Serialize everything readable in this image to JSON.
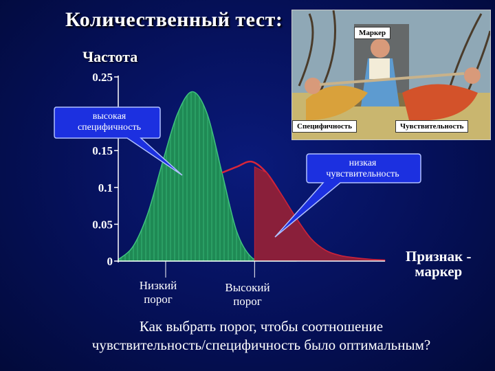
{
  "title": "Количественный тест:",
  "ylabel": "Частота",
  "xlabel_line1": "Признак -",
  "xlabel_line2": "маркер",
  "low_threshold_line1": "Низкий",
  "low_threshold_line2": "порог",
  "high_threshold_line1": "Высокий",
  "high_threshold_line2": "порог",
  "callout_high_spec_line1": "высокая",
  "callout_high_spec_line2": "специфичность",
  "callout_low_sens_line1": "низкая",
  "callout_low_sens_line2": "чувствительность",
  "question_line1": "Как выбрать порог, чтобы соотношение",
  "question_line2": "чувствительность/специфичность было оптимальным?",
  "photo": {
    "tag_marker": "Маркер",
    "tag_specificity": "Специфичность",
    "tag_sensitivity": "Чувствительность"
  },
  "colors": {
    "healthy": "#1f8a55",
    "disease": "#8a1f3a",
    "callout": "#1c30e0"
  },
  "chart_data": {
    "type": "area",
    "ylabel": "Частота",
    "xlabel": "Признак - маркер",
    "yticks": [
      "0",
      "0.05",
      "0.1",
      "0.15",
      "0.25"
    ],
    "ylim": [
      0,
      0.25
    ],
    "series": [
      {
        "x": [
          0.0,
          0.05,
          0.1,
          0.15,
          0.2,
          0.25,
          0.3,
          0.35,
          0.4,
          0.45,
          0.5,
          0.55,
          0.6
        ],
        "values": [
          0.002,
          0.02,
          0.065,
          0.135,
          0.2,
          0.23,
          0.2,
          0.12,
          0.04,
          0.005,
          0.002,
          0.002,
          0.001
        ]
      },
      {
        "x": [
          0.35,
          0.4,
          0.45,
          0.5,
          0.55,
          0.6,
          0.65,
          0.7,
          0.75,
          0.8,
          0.85,
          0.9
        ],
        "values": [
          0.12,
          0.128,
          0.135,
          0.12,
          0.09,
          0.058,
          0.03,
          0.014,
          0.007,
          0.004,
          0.002,
          0.001
        ]
      }
    ],
    "low_threshold_x": 0.16,
    "high_threshold_x": 0.46
  }
}
